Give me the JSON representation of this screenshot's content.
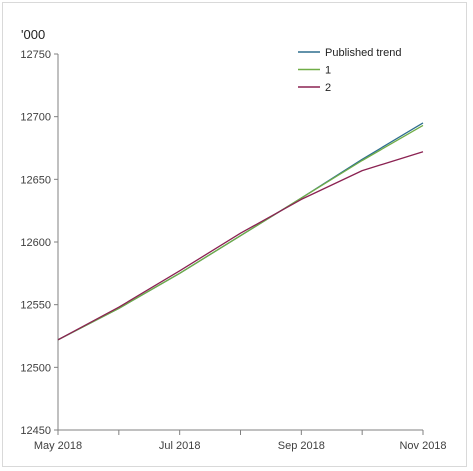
{
  "chart_data": {
    "type": "line",
    "title": "",
    "unit_label": "'000",
    "xlabel": "",
    "ylabel": "",
    "x": [
      "May 2018",
      "Jun 2018",
      "Jul 2018",
      "Aug 2018",
      "Sep 2018",
      "Oct 2018",
      "Nov 2018"
    ],
    "x_tick_labels": [
      "May 2018",
      "Jul 2018",
      "Sep 2018",
      "Nov 2018"
    ],
    "y_ticks": [
      12450,
      12500,
      12550,
      12600,
      12650,
      12700,
      12750
    ],
    "ylim": [
      12450,
      12750
    ],
    "grid": false,
    "legend_position": "top-right",
    "series": [
      {
        "name": "Published trend",
        "color": "#2e6e8e",
        "values": [
          12522,
          12547,
          12575,
          12605,
          12635,
          12666,
          12695
        ]
      },
      {
        "name": "1",
        "color": "#70ad47",
        "values": [
          12522,
          12547,
          12575,
          12605,
          12635,
          12665,
          12693
        ]
      },
      {
        "name": "2",
        "color": "#8b2252",
        "values": [
          12522,
          12548,
          12577,
          12607,
          12634,
          12657,
          12672
        ]
      }
    ]
  }
}
